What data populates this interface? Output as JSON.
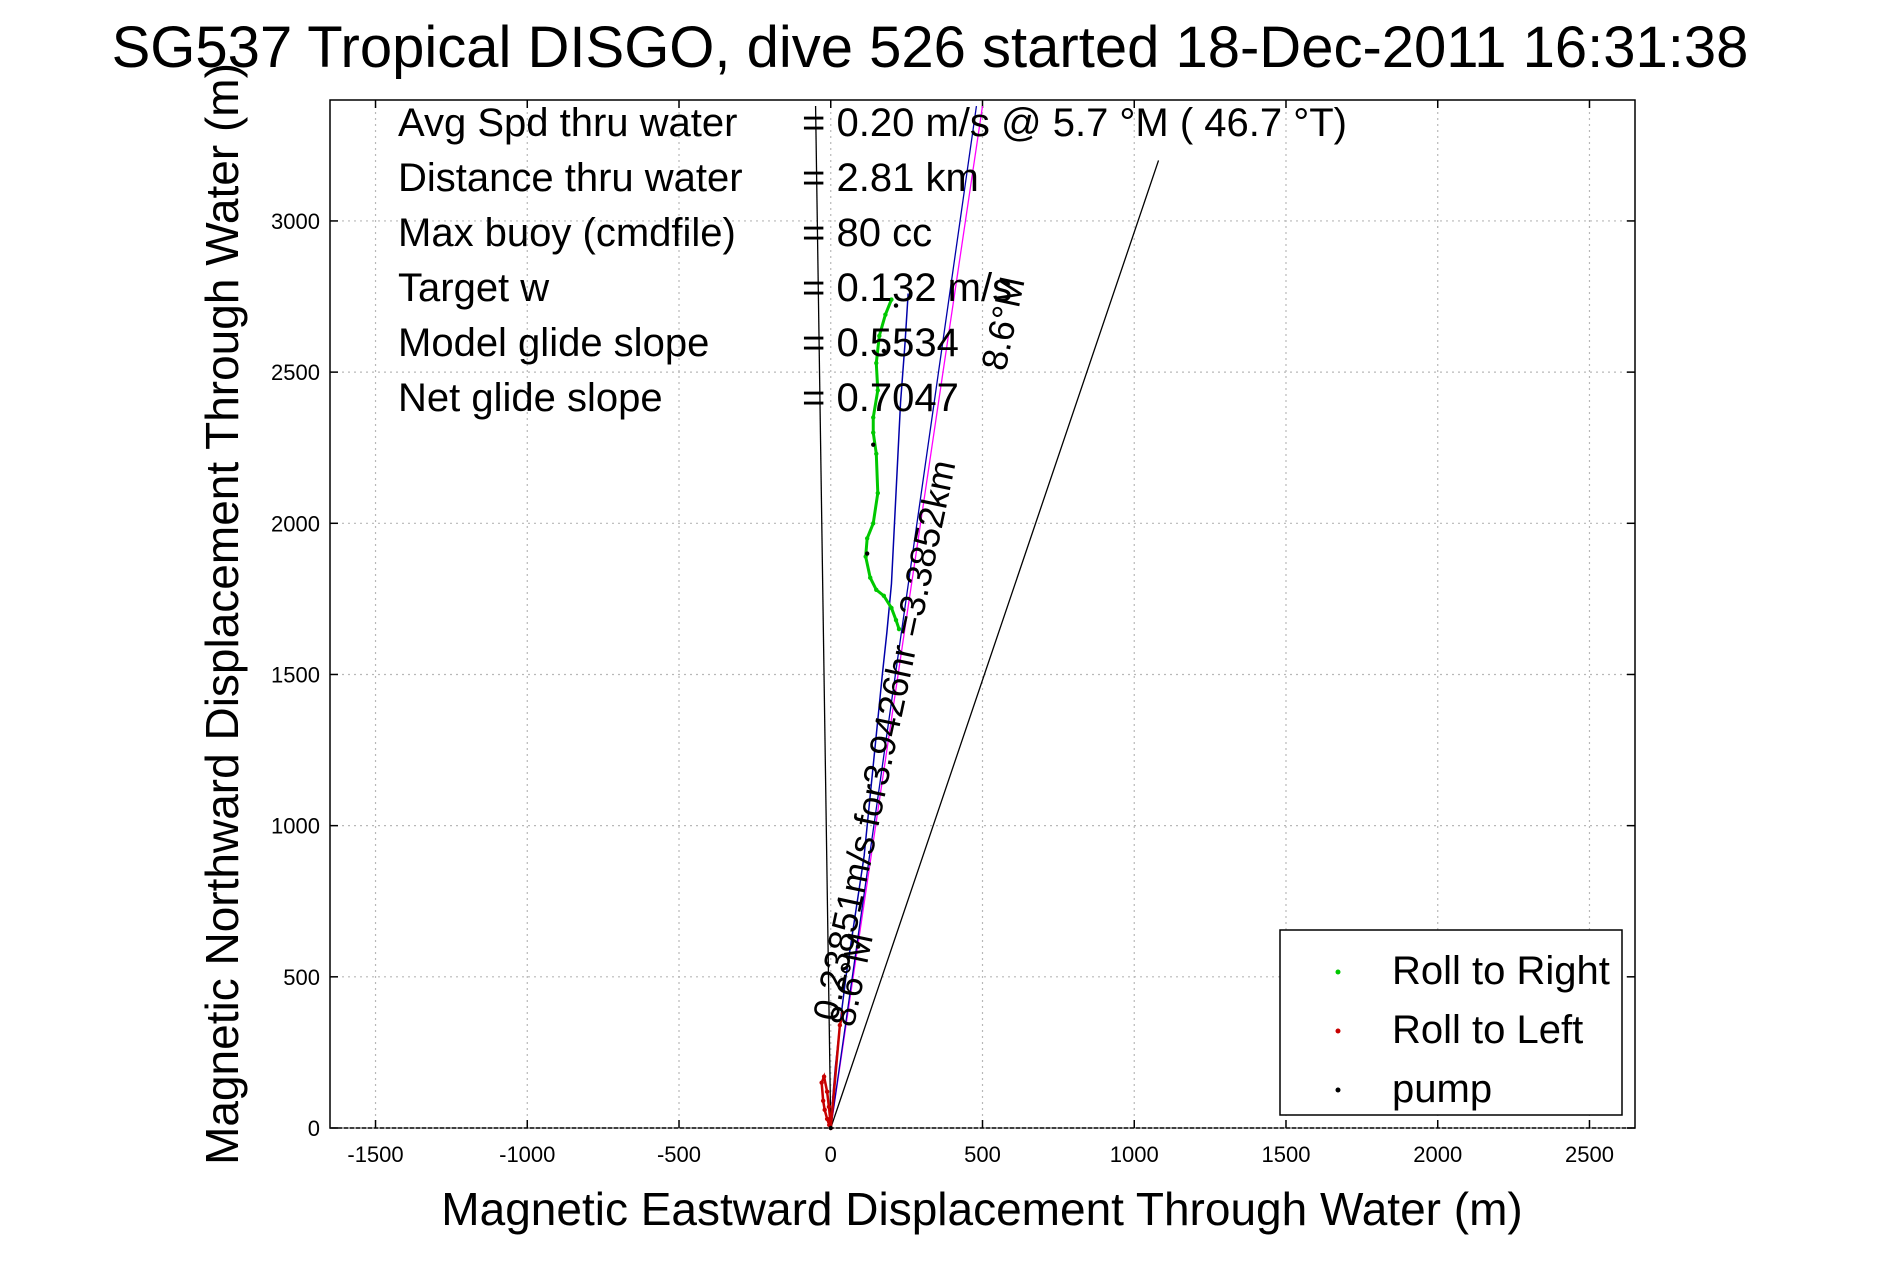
{
  "chart_data": {
    "type": "line",
    "title": "SG537 Tropical DISGO, dive 526 started 18-Dec-2011 16:31:38",
    "xlabel": "Magnetic Eastward Displacement Through Water (m)",
    "ylabel": "Magnetic Northward Displacement Through Water (m)",
    "xlim": [
      -1650,
      2650
    ],
    "ylim": [
      0,
      3400
    ],
    "xticks": [
      -1500,
      -1000,
      -500,
      0,
      500,
      1000,
      1500,
      2000,
      2500
    ],
    "yticks": [
      0,
      500,
      1000,
      1500,
      2000,
      2500,
      3000
    ],
    "xtick_labels": [
      "-1500",
      "-1000",
      "-500",
      "0",
      "500",
      "1000",
      "1500",
      "2000",
      "2500"
    ],
    "ytick_labels": [
      "0",
      "500",
      "1000",
      "1500",
      "2000",
      "2500",
      "3000"
    ],
    "grid": true,
    "legend_position": "bottom-right",
    "series": [
      {
        "name": "Roll to Right",
        "color": "#00c800",
        "x": [
          200,
          180,
          160,
          150,
          155,
          140,
          140,
          150,
          155,
          140,
          120,
          115,
          130,
          150,
          175,
          200,
          215,
          225
        ],
        "y": [
          2740,
          2690,
          2620,
          2530,
          2440,
          2350,
          2300,
          2230,
          2100,
          2000,
          1950,
          1890,
          1820,
          1780,
          1760,
          1720,
          1680,
          1650
        ]
      },
      {
        "name": "Roll to Left",
        "color": "#c80000",
        "x": [
          -5,
          -12,
          -20,
          -25,
          -30,
          -22,
          -12,
          -6,
          -2,
          0,
          30,
          40
        ],
        "y": [
          10,
          30,
          60,
          90,
          150,
          170,
          120,
          70,
          30,
          0,
          340,
          380
        ]
      },
      {
        "name": "pump",
        "color": "#000000",
        "x": [
          0,
          90,
          120,
          140,
          175,
          215
        ],
        "y": [
          0,
          600,
          1900,
          2260,
          2570,
          2720
        ]
      }
    ],
    "trajectory": {
      "color": "#0000aa",
      "x": [
        0,
        5,
        15,
        30,
        50,
        80,
        110,
        130,
        150,
        170,
        185,
        200,
        210,
        220,
        230,
        245,
        255
      ],
      "y": [
        0,
        80,
        200,
        340,
        500,
        700,
        900,
        1100,
        1300,
        1500,
        1640,
        1800,
        2000,
        2200,
        2400,
        2600,
        2760
      ]
    },
    "reference_lines": [
      {
        "x": [
          0,
          -50
        ],
        "y": [
          0,
          3380
        ],
        "color": "#000000"
      },
      {
        "x": [
          0,
          1080
        ],
        "y": [
          0,
          3200
        ],
        "color": "#000000"
      },
      {
        "x": [
          0,
          500
        ],
        "y": [
          0,
          3380
        ],
        "color": "#ff00ff"
      },
      {
        "x": [
          0,
          480
        ],
        "y": [
          0,
          3380
        ],
        "color": "#0000aa"
      }
    ],
    "annotations": [
      {
        "label": "Avg Spd thru water",
        "value": "=  0.20 m/s @   5.7 °M ( 46.7 °T)"
      },
      {
        "label": "Distance thru water",
        "value": "=  2.81 km"
      },
      {
        "label": "Max buoy (cmdfile)",
        "value": "= 80 cc"
      },
      {
        "label": "Target w",
        "value": "= 0.132 m/s"
      },
      {
        "label": "Model glide slope",
        "value": "= 0.5534"
      },
      {
        "label": "Net glide slope",
        "value": "= 0.7047"
      }
    ],
    "plot_labels": [
      {
        "text": "8.6°M",
        "x": 75,
        "y": 330,
        "rotation": -78
      },
      {
        "text": "0.23851m/s for3.9426hr =3.3852km",
        "x": 20,
        "y": 350,
        "rotation": -78
      },
      {
        "text": "8.6°M",
        "x": 575,
        "y": 2500,
        "rotation": -78
      }
    ]
  }
}
